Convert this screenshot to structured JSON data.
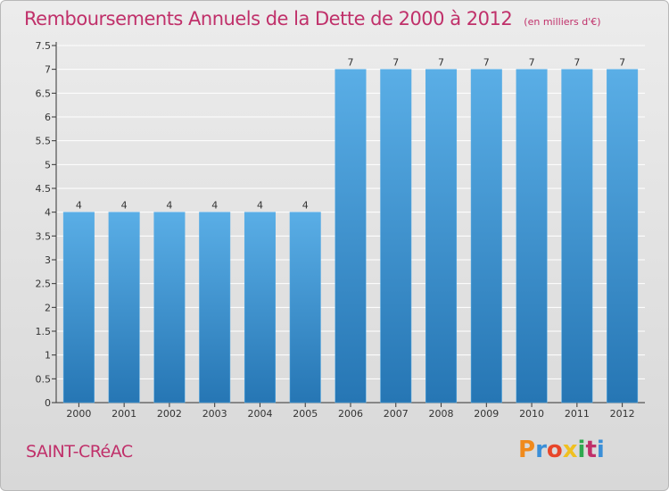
{
  "header": {
    "title": "Remboursements Annuels de la Dette de 2000 à 2012",
    "unit": "(en milliers d'€)"
  },
  "footer": {
    "commune": "SAINT-CRéAC",
    "brand": "Proxiti",
    "brand_colors": [
      "#f08a1c",
      "#3a8fd8",
      "#e8462a",
      "#f0c020",
      "#2fa84f",
      "#c0306a",
      "#3a8fd8"
    ]
  },
  "colors": {
    "bar_top": "#5aaee6",
    "bar_bottom": "#2676b4",
    "title": "#c0306a",
    "gridline": "#ffffff",
    "axis": "#333333"
  },
  "chart_data": {
    "type": "bar",
    "categories": [
      "2000",
      "2001",
      "2002",
      "2003",
      "2004",
      "2005",
      "2006",
      "2007",
      "2008",
      "2009",
      "2010",
      "2011",
      "2012"
    ],
    "values": [
      4,
      4,
      4,
      4,
      4,
      4,
      7,
      7,
      7,
      7,
      7,
      7,
      7
    ],
    "y_tick_labels": [
      "0",
      "0.5",
      "1",
      "1.5",
      "2",
      "2.5",
      "3",
      "3.5",
      "4",
      "4.5",
      "5",
      "5.5",
      "6",
      "6.5",
      "7",
      "7.5"
    ],
    "ylim": [
      0,
      7.5
    ],
    "grid": true,
    "data_labels": true
  }
}
